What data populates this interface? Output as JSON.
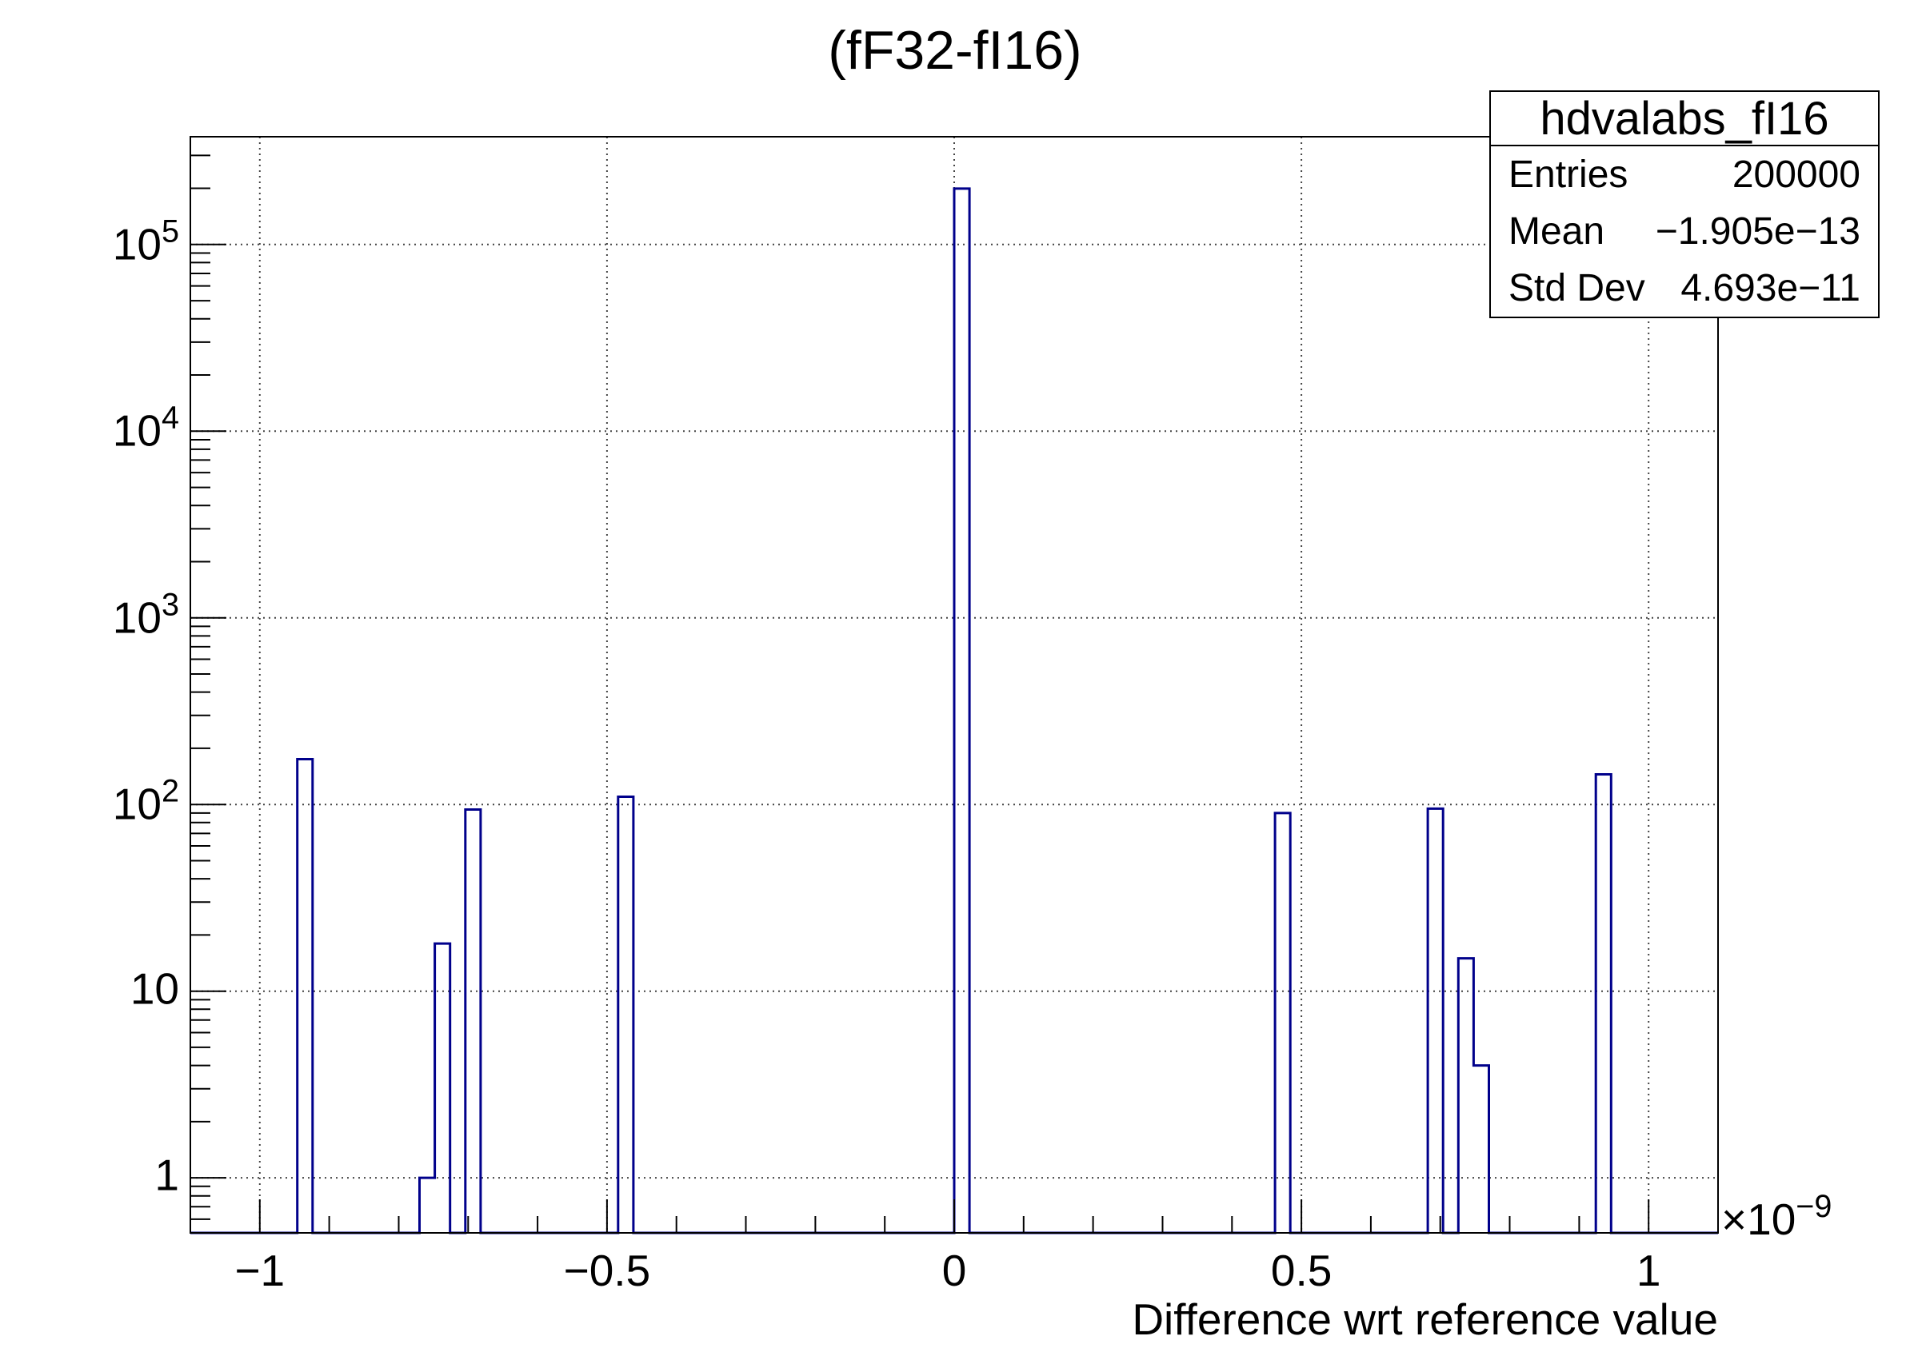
{
  "title": "(fF32-fI16)",
  "stats_box": {
    "title": "hdvalabs_fI16",
    "rows": [
      {
        "label": "Entries",
        "value": "200000"
      },
      {
        "label": "Mean",
        "value": "−1.905e−13"
      },
      {
        "label": "Std Dev",
        "value": "4.693e−11"
      }
    ]
  },
  "x_axis": {
    "title": "Difference wrt reference value",
    "scale_label_base": "×10",
    "scale_label_exp": "−9",
    "tick_labels": [
      {
        "value": -1,
        "text": "−1"
      },
      {
        "value": -0.5,
        "text": "−0.5"
      },
      {
        "value": 0,
        "text": "0"
      },
      {
        "value": 0.5,
        "text": "0.5"
      },
      {
        "value": 1,
        "text": "1"
      }
    ],
    "minor_tick_step": 0.1
  },
  "y_axis": {
    "scale": "log",
    "tick_labels": [
      {
        "value": 1,
        "base": "1",
        "exp": ""
      },
      {
        "value": 10,
        "base": "10",
        "exp": ""
      },
      {
        "value": 100,
        "base": "10",
        "exp": "2"
      },
      {
        "value": 1000,
        "base": "10",
        "exp": "3"
      },
      {
        "value": 10000,
        "base": "10",
        "exp": "4"
      },
      {
        "value": 100000,
        "base": "10",
        "exp": "5"
      }
    ]
  },
  "chart_data": {
    "type": "bar",
    "histogram_name": "hdvalabs_fI16",
    "title": "(fF32-fI16)",
    "xlabel": "Difference wrt reference value",
    "ylabel": "",
    "x_unit_factor": "1e-9",
    "xlim_e9": [
      -1.1,
      1.1
    ],
    "ylim": [
      0.507,
      378000
    ],
    "y_log": true,
    "grid": true,
    "n_bins": 100,
    "bin_width_e9": 0.022,
    "entries": 200000,
    "mean": "-1.905e-13",
    "std_dev": "4.693e-11",
    "bins": [
      {
        "left_e9": -0.946,
        "right_e9": -0.924,
        "count": 175
      },
      {
        "left_e9": -0.77,
        "right_e9": -0.748,
        "count": 1
      },
      {
        "left_e9": -0.748,
        "right_e9": -0.726,
        "count": 18
      },
      {
        "left_e9": -0.704,
        "right_e9": -0.682,
        "count": 94
      },
      {
        "left_e9": -0.484,
        "right_e9": -0.462,
        "count": 110
      },
      {
        "left_e9": 0.0,
        "right_e9": 0.022,
        "count": 199253
      },
      {
        "left_e9": 0.462,
        "right_e9": 0.484,
        "count": 90
      },
      {
        "left_e9": 0.682,
        "right_e9": 0.704,
        "count": 95
      },
      {
        "left_e9": 0.726,
        "right_e9": 0.748,
        "count": 15
      },
      {
        "left_e9": 0.748,
        "right_e9": 0.77,
        "count": 4
      },
      {
        "left_e9": 0.924,
        "right_e9": 0.946,
        "count": 145
      }
    ]
  },
  "colors": {
    "histogram_line": "#00008b",
    "frame": "#000000",
    "grid": "#444444",
    "text": "#000000",
    "background": "#ffffff"
  }
}
